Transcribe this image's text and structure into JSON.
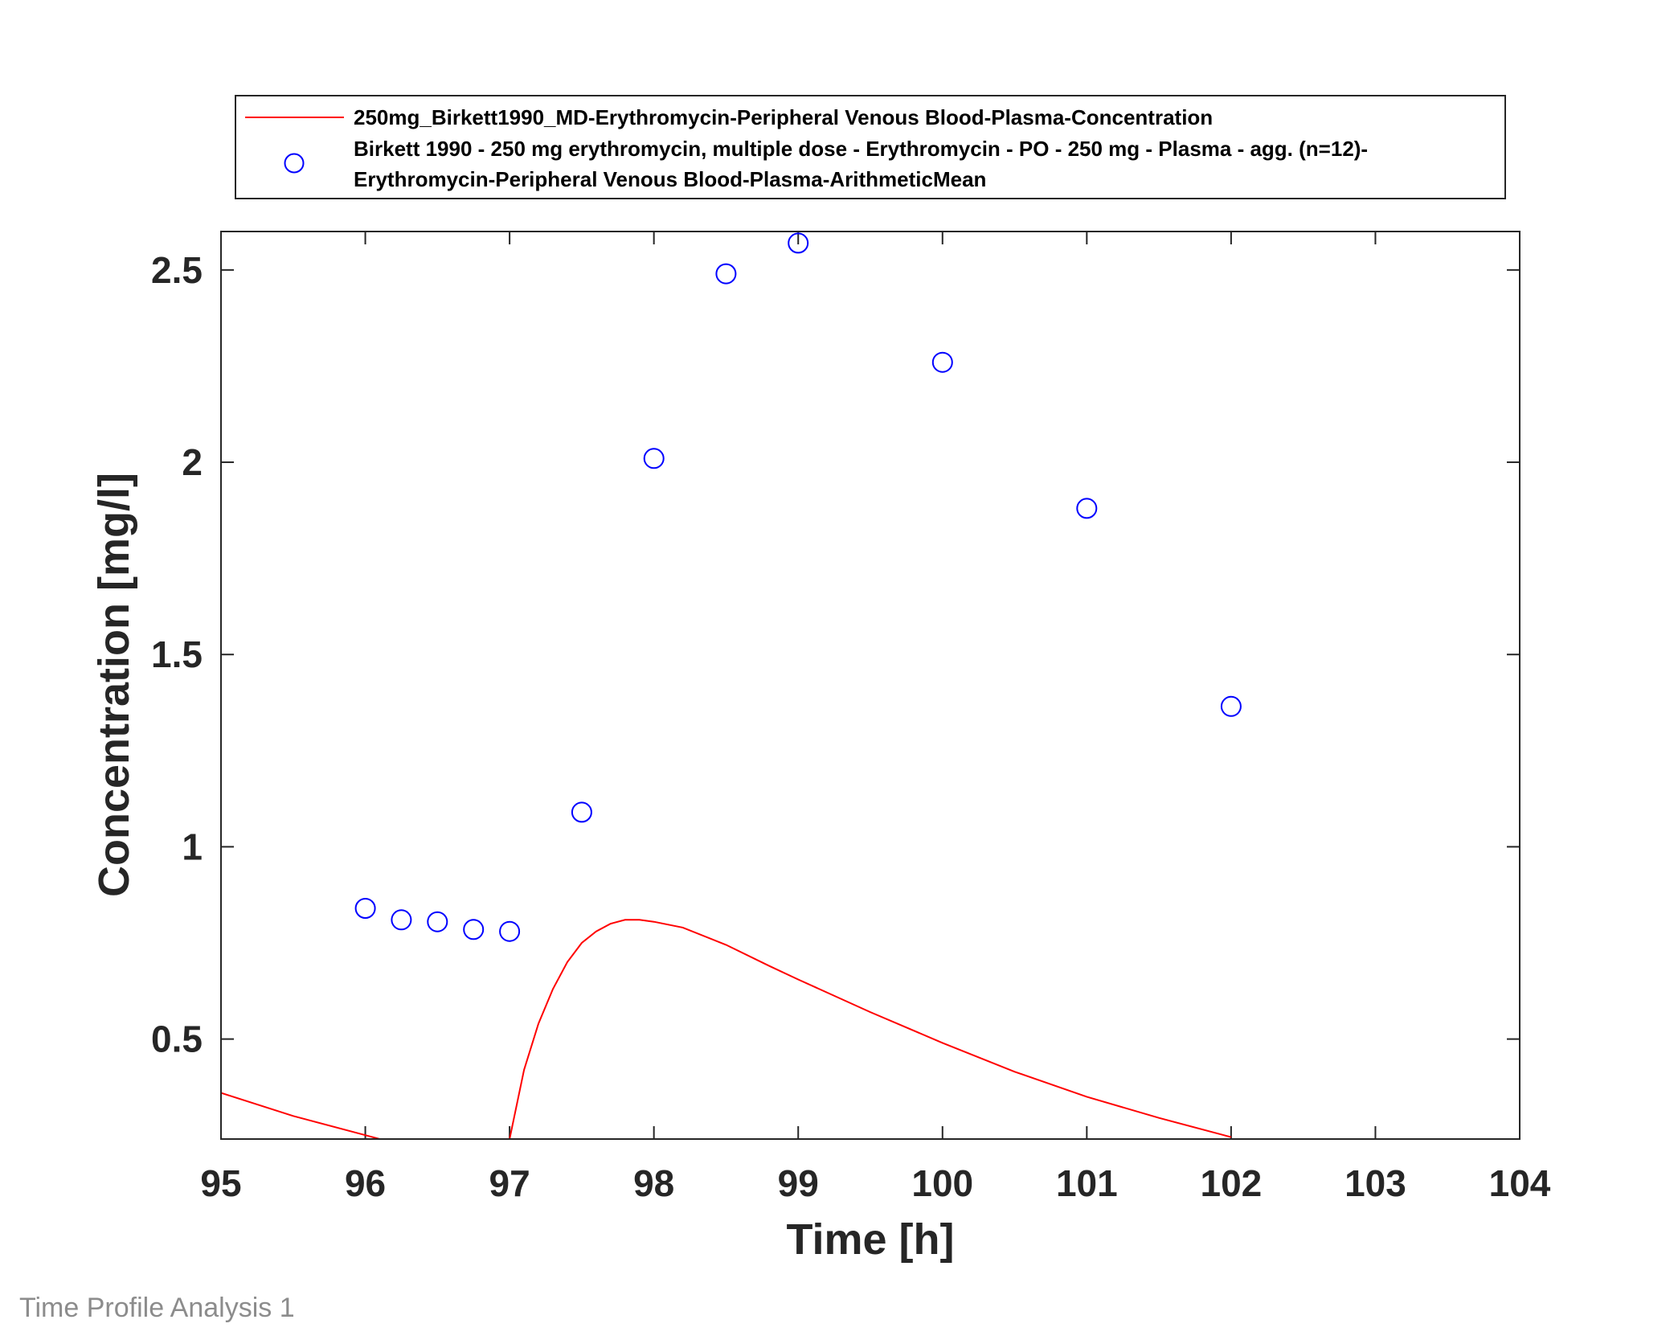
{
  "footer_text": "Time Profile Analysis 1",
  "chart_data": {
    "type": "line",
    "xlabel": "Time [h]",
    "ylabel": "Concentration [mg/l]",
    "xlim": [
      95,
      104
    ],
    "ylim": [
      0.24,
      2.6
    ],
    "xticks": [
      "95",
      "96",
      "97",
      "98",
      "99",
      "100",
      "101",
      "102",
      "103",
      "104"
    ],
    "yticks": [
      "0.5",
      "1",
      "1.5",
      "2",
      "2.5"
    ],
    "legend_position": "top, outside plot",
    "colors": {
      "simulation": "#ff0000",
      "observed": "#0000ff",
      "axes": "#262626"
    },
    "series": [
      {
        "name": "250mg_Birkett1990_MD-Erythromycin-Peripheral Venous Blood-Plasma-Concentration",
        "kind": "line",
        "x": [
          95.0,
          95.5,
          96.0,
          96.2,
          97.0,
          97.05,
          97.1,
          97.2,
          97.3,
          97.4,
          97.5,
          97.6,
          97.7,
          97.8,
          97.9,
          98.0,
          98.2,
          98.5,
          98.8,
          99.0,
          99.5,
          100.0,
          100.5,
          101.0,
          101.5,
          102.0
        ],
        "y": [
          0.36,
          0.3,
          0.25,
          0.23,
          0.24,
          0.33,
          0.42,
          0.54,
          0.63,
          0.7,
          0.75,
          0.78,
          0.8,
          0.81,
          0.81,
          0.805,
          0.79,
          0.745,
          0.69,
          0.655,
          0.57,
          0.49,
          0.415,
          0.35,
          0.295,
          0.245
        ]
      },
      {
        "name": "Birkett 1990 - 250 mg erythromycin, multiple dose - Erythromycin - PO - 250 mg - Plasma - agg. (n=12)-Erythromycin-Peripheral Venous Blood-Plasma-ArithmeticMean",
        "legend_lines": [
          "Birkett 1990 - 250 mg erythromycin, multiple dose - Erythromycin - PO - 250 mg - Plasma - agg. (n=12)-",
          "Erythromycin-Peripheral Venous Blood-Plasma-ArithmeticMean"
        ],
        "kind": "scatter",
        "x": [
          96.0,
          96.25,
          96.5,
          96.75,
          97.0,
          97.5,
          98.0,
          98.5,
          99.0,
          100.0,
          101.0,
          102.0
        ],
        "y": [
          0.84,
          0.81,
          0.805,
          0.785,
          0.78,
          1.09,
          2.01,
          2.49,
          2.57,
          2.26,
          1.88,
          1.365
        ]
      }
    ]
  }
}
